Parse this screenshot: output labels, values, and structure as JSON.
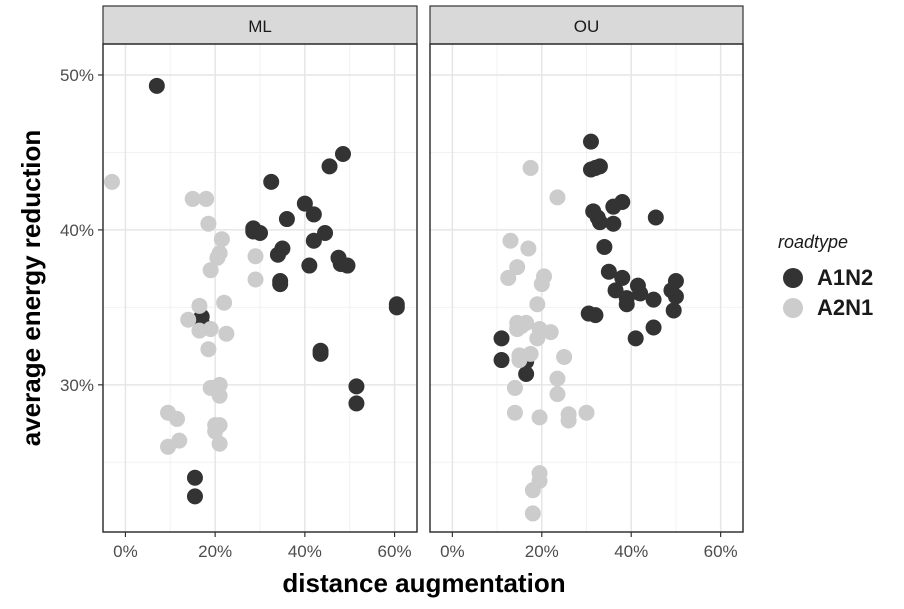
{
  "chart_data": {
    "type": "scatter",
    "xlabel": "distance augmentation",
    "ylabel": "average energy reduction",
    "xlim": [
      -5,
      65
    ],
    "ylim": [
      20.5,
      52
    ],
    "x_ticks": [
      0,
      20,
      40,
      60
    ],
    "x_tick_labels": [
      "0%",
      "20%",
      "40%",
      "60%"
    ],
    "y_ticks": [
      30,
      40,
      50
    ],
    "y_tick_labels": [
      "30%",
      "40%",
      "50%"
    ],
    "grid": true,
    "legend": {
      "title": "roadtype",
      "position": "right",
      "entries": [
        {
          "label": "A1N2",
          "color": "#333333"
        },
        {
          "label": "A2N1",
          "color": "#cccccc"
        }
      ]
    },
    "panels": [
      {
        "title": "ML",
        "series": [
          {
            "name": "A1N2",
            "points": [
              [
                7,
                49.3
              ],
              [
                17,
                34.4
              ],
              [
                17,
                34
              ],
              [
                15.5,
                24
              ],
              [
                15.5,
                22.8
              ],
              [
                28.5,
                40.1
              ],
              [
                28.5,
                39.9
              ],
              [
                30,
                39.8
              ],
              [
                32.5,
                43.1
              ],
              [
                34,
                38.4
              ],
              [
                35,
                38.8
              ],
              [
                34.5,
                36.7
              ],
              [
                34.5,
                36.5
              ],
              [
                36,
                40.7
              ],
              [
                40,
                41.7
              ],
              [
                41,
                37.7
              ],
              [
                42,
                41
              ],
              [
                42,
                39.3
              ],
              [
                43.5,
                32.2
              ],
              [
                43.5,
                32
              ],
              [
                44.5,
                39.8
              ],
              [
                45.5,
                44.1
              ],
              [
                47.5,
                38.2
              ],
              [
                48,
                37.8
              ],
              [
                48.5,
                44.9
              ],
              [
                49.5,
                37.7
              ],
              [
                51.5,
                29.9
              ],
              [
                51.5,
                28.8
              ],
              [
                60.5,
                35.2
              ],
              [
                60.5,
                35
              ]
            ]
          },
          {
            "name": "A2N1",
            "points": [
              [
                -3,
                43.1
              ],
              [
                9.5,
                28.2
              ],
              [
                9.5,
                26
              ],
              [
                11.5,
                27.8
              ],
              [
                12,
                26.4
              ],
              [
                14,
                34.2
              ],
              [
                15,
                42
              ],
              [
                16.5,
                35.1
              ],
              [
                16.5,
                33.5
              ],
              [
                18,
                42
              ],
              [
                18.5,
                40.4
              ],
              [
                18.5,
                32.3
              ],
              [
                19,
                37.4
              ],
              [
                19,
                33.6
              ],
              [
                19,
                29.8
              ],
              [
                20,
                27.4
              ],
              [
                20,
                27
              ],
              [
                20.5,
                38.2
              ],
              [
                21,
                38.5
              ],
              [
                21,
                30
              ],
              [
                21,
                29.3
              ],
              [
                21,
                27.4
              ],
              [
                21,
                26.2
              ],
              [
                21.5,
                39.4
              ],
              [
                22,
                35.3
              ],
              [
                22.5,
                33.3
              ],
              [
                29,
                38.3
              ],
              [
                29,
                36.8
              ]
            ]
          }
        ]
      },
      {
        "title": "OU",
        "series": [
          {
            "name": "A1N2",
            "points": [
              [
                11,
                33
              ],
              [
                11,
                31.6
              ],
              [
                16.5,
                31.5
              ],
              [
                16.5,
                30.7
              ],
              [
                30.5,
                34.6
              ],
              [
                31,
                45.7
              ],
              [
                31,
                43.9
              ],
              [
                31.5,
                41.2
              ],
              [
                32,
                44
              ],
              [
                32,
                34.5
              ],
              [
                32.5,
                40.8
              ],
              [
                33,
                40.5
              ],
              [
                33,
                44.1
              ],
              [
                34,
                38.9
              ],
              [
                35,
                37.3
              ],
              [
                36,
                41.5
              ],
              [
                36,
                40.4
              ],
              [
                36.5,
                36.1
              ],
              [
                38,
                41.8
              ],
              [
                38,
                36.9
              ],
              [
                39,
                35.6
              ],
              [
                39,
                35.2
              ],
              [
                41,
                33
              ],
              [
                41.5,
                36.4
              ],
              [
                42,
                35.9
              ],
              [
                45,
                35.5
              ],
              [
                45,
                33.7
              ],
              [
                45.5,
                40.8
              ],
              [
                49,
                36.1
              ],
              [
                49.5,
                34.8
              ],
              [
                50,
                35.7
              ],
              [
                50,
                36.7
              ]
            ]
          },
          {
            "name": "A2N1",
            "points": [
              [
                12.5,
                36.9
              ],
              [
                13,
                39.3
              ],
              [
                14,
                29.8
              ],
              [
                14,
                28.2
              ],
              [
                14.5,
                37.6
              ],
              [
                14.5,
                34
              ],
              [
                14.5,
                33.6
              ],
              [
                15,
                31.9
              ],
              [
                15,
                31.6
              ],
              [
                15.5,
                33.8
              ],
              [
                16.5,
                34
              ],
              [
                17,
                38.8
              ],
              [
                17.5,
                44
              ],
              [
                17.5,
                32
              ],
              [
                18,
                23.2
              ],
              [
                18,
                21.7
              ],
              [
                19,
                35.2
              ],
              [
                19,
                33
              ],
              [
                19.5,
                33.6
              ],
              [
                19.5,
                27.9
              ],
              [
                19.5,
                24.3
              ],
              [
                19.5,
                23.8
              ],
              [
                20,
                36.5
              ],
              [
                20.5,
                37
              ],
              [
                22,
                33.4
              ],
              [
                23.5,
                42.1
              ],
              [
                23.5,
                30.4
              ],
              [
                23.5,
                29.4
              ],
              [
                25,
                31.8
              ],
              [
                26,
                28.1
              ],
              [
                26,
                27.7
              ],
              [
                30,
                28.2
              ]
            ]
          }
        ]
      }
    ]
  }
}
